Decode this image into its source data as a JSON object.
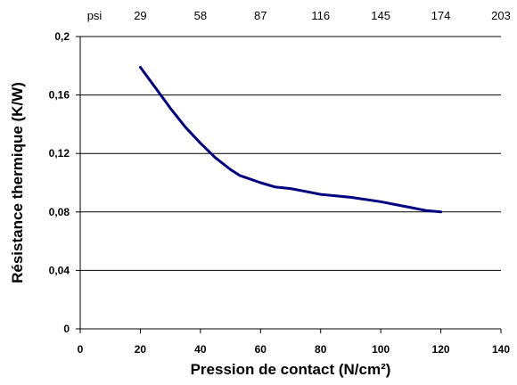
{
  "chart_data": {
    "type": "line",
    "xlabel": "Pression de contact (N/cm²)",
    "ylabel": "Résistance thermique (K/W)",
    "xlim": [
      0,
      140
    ],
    "ylim": [
      0,
      0.2
    ],
    "x_ticks": [
      "0",
      "20",
      "40",
      "60",
      "80",
      "100",
      "120",
      "140"
    ],
    "y_ticks": [
      "0",
      "0,04",
      "0,08",
      "0,12",
      "0,16",
      "0,2"
    ],
    "top_axis": {
      "unit": "psi",
      "ticks": [
        "29",
        "58",
        "87",
        "116",
        "145",
        "174",
        "203"
      ]
    },
    "grid": "horizontal",
    "series": [
      {
        "color": "#000080",
        "x": [
          20,
          25,
          30,
          35,
          40,
          45,
          50,
          53,
          60,
          65,
          70,
          75,
          80,
          90,
          100,
          105,
          110,
          115,
          120
        ],
        "y": [
          0.179,
          0.165,
          0.151,
          0.138,
          0.127,
          0.117,
          0.109,
          0.105,
          0.1,
          0.097,
          0.096,
          0.094,
          0.092,
          0.09,
          0.087,
          0.085,
          0.083,
          0.081,
          0.08
        ]
      }
    ]
  }
}
